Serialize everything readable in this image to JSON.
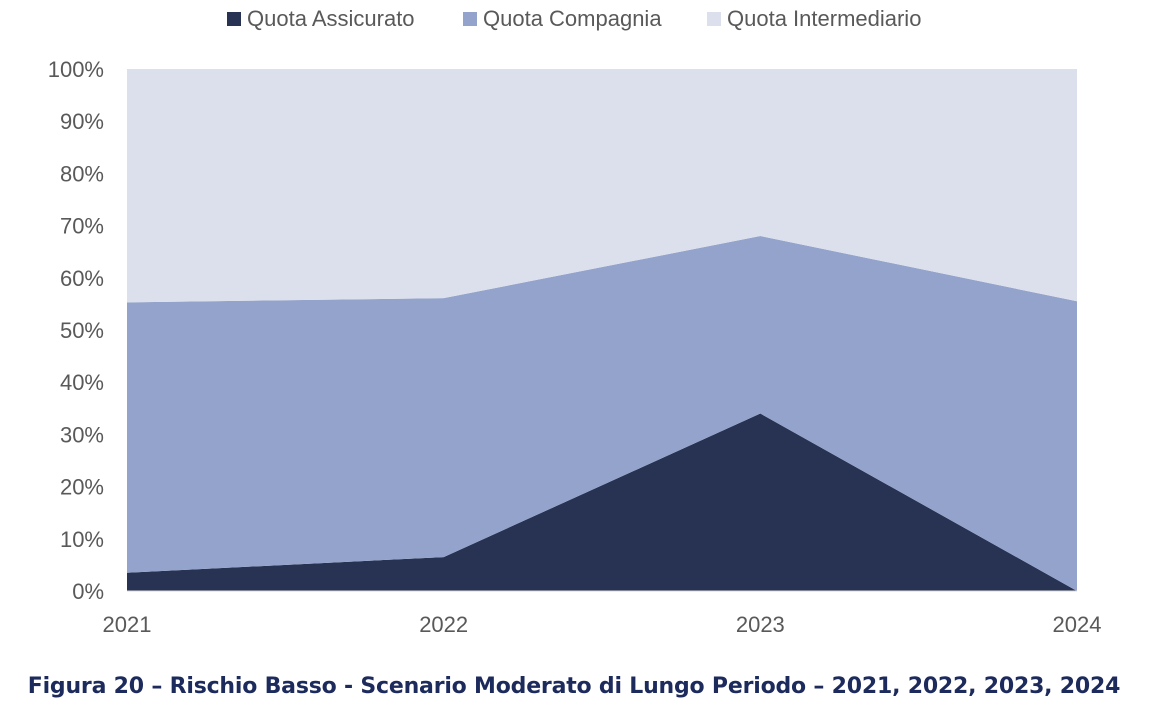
{
  "caption": "Figura 20 – Rischio Basso - Scenario Moderato di Lungo Periodo – 2021, 2022, 2023, 2024",
  "chart_data": {
    "type": "area",
    "stacked": true,
    "percent": true,
    "categories": [
      "2021",
      "2022",
      "2023",
      "2024"
    ],
    "series": [
      {
        "name": "Quota Assicurato",
        "values": [
          3.5,
          6.5,
          34,
          0
        ],
        "color": "#283354"
      },
      {
        "name": "Quota Compagnia",
        "values": [
          51.8,
          49.6,
          34,
          55.5
        ],
        "color": "#94a3cb"
      },
      {
        "name": "Quota Intermediario",
        "values": [
          44.7,
          43.9,
          32,
          44.5
        ],
        "color": "#dbe0ec"
      }
    ],
    "y_ticks": [
      "0%",
      "10%",
      "20%",
      "30%",
      "40%",
      "50%",
      "60%",
      "70%",
      "80%",
      "90%",
      "100%"
    ],
    "ylim": [
      0,
      100
    ],
    "legend_position": "top",
    "grid": false
  }
}
